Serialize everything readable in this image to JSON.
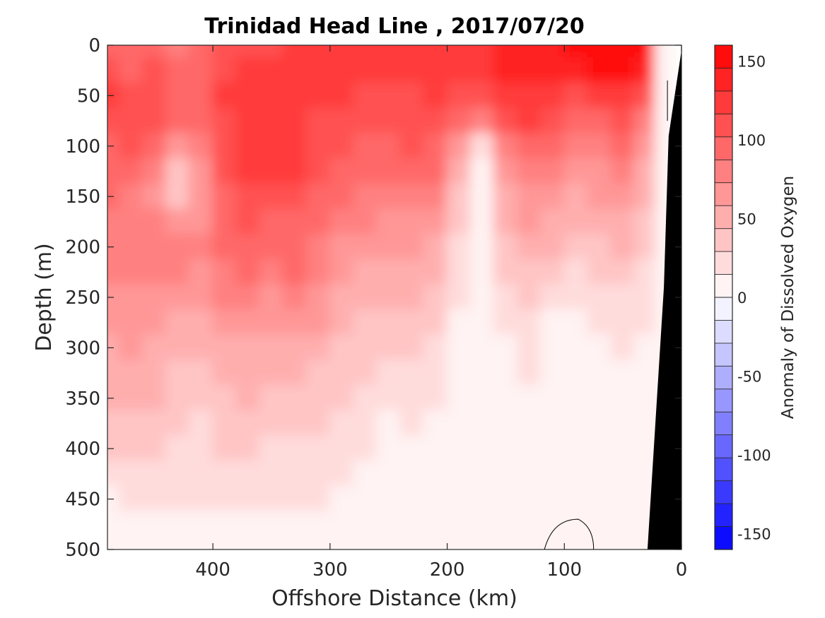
{
  "chart_data": {
    "type": "heatmap",
    "title": "Trinidad Head Line , 2017/07/20",
    "xlabel": "Offshore Distance (km)",
    "ylabel": "Depth (m)",
    "colorbar_label": "Anomaly of Dissolved Oxygen",
    "x_axis": {
      "range": [
        490,
        0
      ],
      "reversed": true,
      "ticks": [
        400,
        300,
        200,
        100,
        0
      ],
      "tick_labels": [
        "400",
        "300",
        "200",
        "100",
        "0"
      ]
    },
    "y_axis": {
      "range": [
        0,
        500
      ],
      "reversed": true,
      "ticks": [
        0,
        50,
        100,
        150,
        200,
        250,
        300,
        350,
        400,
        450,
        500
      ],
      "tick_labels": [
        "0",
        "50",
        "100",
        "150",
        "200",
        "250",
        "300",
        "350",
        "400",
        "450",
        "500"
      ]
    },
    "colorbar": {
      "range": [
        -160,
        160
      ],
      "ticks": [
        150,
        100,
        50,
        0,
        -50,
        -100,
        -150
      ],
      "tick_labels": [
        "150",
        "100",
        "50",
        "0",
        "-50",
        "-100",
        "-150"
      ],
      "low_color": "#0000ff",
      "mid_color": "#ffffff",
      "high_color": "#ff0000",
      "levels": 22
    },
    "x": [
      490,
      470,
      450,
      430,
      410,
      390,
      370,
      350,
      330,
      310,
      290,
      270,
      250,
      230,
      210,
      190,
      170,
      150,
      130,
      110,
      90,
      70,
      50,
      30,
      15
    ],
    "y": [
      0,
      25,
      50,
      75,
      100,
      125,
      150,
      175,
      200,
      225,
      250,
      275,
      300,
      325,
      350,
      375,
      400,
      425,
      450,
      475,
      500
    ],
    "z": [
      [
        95,
        95,
        100,
        85,
        100,
        110,
        112,
        112,
        118,
        122,
        122,
        120,
        120,
        125,
        128,
        130,
        128,
        132,
        138,
        145,
        150,
        158,
        160,
        150,
        0
      ],
      [
        105,
        100,
        105,
        92,
        100,
        110,
        118,
        118,
        120,
        122,
        122,
        120,
        120,
        125,
        128,
        128,
        128,
        132,
        138,
        142,
        140,
        148,
        152,
        135,
        0
      ],
      [
        122,
        110,
        110,
        100,
        95,
        118,
        125,
        125,
        120,
        118,
        118,
        115,
        112,
        115,
        118,
        115,
        115,
        125,
        130,
        128,
        115,
        125,
        130,
        112,
        0
      ],
      [
        110,
        112,
        105,
        90,
        92,
        112,
        120,
        125,
        125,
        115,
        112,
        105,
        105,
        110,
        110,
        95,
        80,
        105,
        120,
        112,
        95,
        100,
        105,
        85,
        0
      ],
      [
        100,
        102,
        90,
        70,
        80,
        108,
        120,
        125,
        128,
        112,
        105,
        100,
        100,
        105,
        100,
        60,
        20,
        75,
        98,
        95,
        78,
        85,
        88,
        70,
        0
      ],
      [
        95,
        95,
        75,
        40,
        70,
        105,
        118,
        120,
        118,
        105,
        95,
        95,
        90,
        92,
        90,
        50,
        12,
        62,
        82,
        80,
        68,
        72,
        75,
        58,
        0
      ],
      [
        88,
        85,
        72,
        30,
        68,
        100,
        112,
        112,
        108,
        95,
        88,
        86,
        80,
        82,
        78,
        42,
        10,
        52,
        70,
        68,
        55,
        60,
        62,
        48,
        0
      ],
      [
        82,
        80,
        75,
        62,
        72,
        96,
        105,
        100,
        100,
        88,
        80,
        76,
        70,
        72,
        68,
        35,
        8,
        45,
        60,
        58,
        45,
        50,
        52,
        40,
        0
      ],
      [
        78,
        78,
        80,
        76,
        75,
        90,
        98,
        92,
        92,
        82,
        72,
        66,
        60,
        60,
        55,
        28,
        5,
        38,
        50,
        48,
        36,
        42,
        44,
        34,
        0
      ],
      [
        74,
        76,
        78,
        74,
        72,
        86,
        92,
        84,
        88,
        78,
        66,
        58,
        52,
        52,
        48,
        20,
        8,
        30,
        40,
        38,
        28,
        34,
        36,
        28,
        0
      ],
      [
        70,
        72,
        72,
        68,
        66,
        76,
        82,
        72,
        80,
        70,
        58,
        50,
        45,
        45,
        40,
        15,
        6,
        22,
        30,
        22,
        15,
        25,
        28,
        22,
        0
      ],
      [
        64,
        66,
        62,
        56,
        52,
        62,
        68,
        60,
        68,
        60,
        50,
        42,
        38,
        38,
        32,
        12,
        5,
        16,
        24,
        12,
        8,
        18,
        22,
        18,
        0
      ],
      [
        58,
        60,
        55,
        48,
        44,
        52,
        58,
        52,
        56,
        50,
        42,
        36,
        32,
        32,
        25,
        10,
        4,
        12,
        20,
        5,
        2,
        12,
        16,
        14,
        0
      ],
      [
        52,
        54,
        50,
        42,
        40,
        45,
        50,
        46,
        46,
        42,
        36,
        30,
        26,
        26,
        20,
        8,
        3,
        10,
        16,
        4,
        1,
        10,
        14,
        12,
        0
      ],
      [
        44,
        46,
        44,
        36,
        34,
        40,
        44,
        38,
        40,
        36,
        30,
        25,
        15,
        20,
        16,
        8,
        5,
        12,
        14,
        4,
        1,
        9,
        12,
        10,
        0
      ],
      [
        38,
        38,
        38,
        30,
        28,
        35,
        38,
        34,
        34,
        30,
        26,
        20,
        10,
        15,
        14,
        10,
        8,
        12,
        12,
        4,
        1,
        8,
        10,
        9,
        0
      ],
      [
        30,
        32,
        34,
        28,
        24,
        30,
        32,
        28,
        28,
        26,
        22,
        16,
        8,
        12,
        12,
        12,
        10,
        12,
        10,
        4,
        1,
        7,
        9,
        8,
        0
      ],
      [
        22,
        26,
        28,
        24,
        20,
        26,
        26,
        24,
        24,
        22,
        18,
        12,
        6,
        10,
        10,
        10,
        10,
        10,
        8,
        3,
        1,
        6,
        8,
        6,
        0
      ],
      [
        14,
        20,
        22,
        20,
        16,
        20,
        20,
        18,
        18,
        16,
        14,
        10,
        5,
        8,
        8,
        8,
        8,
        8,
        6,
        2,
        1,
        4,
        6,
        4,
        0
      ],
      [
        8,
        12,
        14,
        12,
        10,
        12,
        12,
        12,
        12,
        10,
        8,
        6,
        3,
        6,
        6,
        5,
        5,
        5,
        4,
        1,
        0,
        2,
        4,
        2,
        0
      ],
      [
        5,
        8,
        8,
        8,
        6,
        6,
        6,
        6,
        6,
        6,
        4,
        4,
        2,
        4,
        4,
        3,
        3,
        3,
        2,
        0,
        0,
        1,
        2,
        1,
        0
      ]
    ],
    "grid": false,
    "topography": "black"
  }
}
